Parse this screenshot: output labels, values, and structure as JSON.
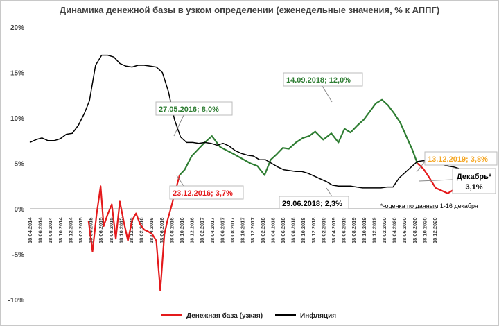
{
  "chart_data": {
    "type": "line",
    "title": "Динамика денежной базы в узком определении (еженедельные значения, % к АППГ)",
    "y_ticks": [
      "20%",
      "15%",
      "10%",
      "5%",
      "0%",
      "-5%",
      "-10%"
    ],
    "ylim": [
      -10,
      20
    ],
    "x_ticks": [
      "18.04.2014",
      "18.06.2014",
      "18.08.2014",
      "18.10.2014",
      "18.12.2014",
      "18.02.2015",
      "18.04.2015",
      "18.06.2015",
      "18.08.2015",
      "18.10.2015",
      "18.12.2015",
      "18.02.2016",
      "18.04.2016",
      "18.06.2016",
      "18.08.2016",
      "18.10.2016",
      "18.12.2016",
      "18.02.2017",
      "18.04.2017",
      "18.06.2017",
      "18.08.2017",
      "18.10.2017",
      "18.12.2017",
      "18.02.2018",
      "18.04.2018",
      "18.06.2018",
      "18.08.2018",
      "18.10.2018",
      "18.12.2018",
      "18.02.2019",
      "18.04.2019",
      "18.06.2019",
      "18.08.2019",
      "18.10.2019",
      "18.12.2019",
      "18.02.2020",
      "18.04.2020",
      "18.06.2020",
      "18.08.2020",
      "18.10.2020",
      "18.12.2020"
    ],
    "series": [
      {
        "name": "Денежная база (узкая)",
        "color": "#e41a1c",
        "points": [
          [
            5.8,
            -1.3
          ],
          [
            6.2,
            -4.7
          ],
          [
            6.6,
            -0.6
          ],
          [
            7.0,
            2.5
          ],
          [
            7.3,
            -1.9
          ],
          [
            7.7,
            -0.6
          ],
          [
            8.1,
            0.5
          ],
          [
            8.5,
            -3.3
          ],
          [
            8.9,
            0.8
          ],
          [
            9.3,
            -1.5
          ],
          [
            9.7,
            -3.5
          ],
          [
            10.1,
            -1.3
          ],
          [
            10.5,
            -0.5
          ],
          [
            10.9,
            -1.7
          ],
          [
            11.3,
            -2.3
          ],
          [
            11.7,
            -2.5
          ],
          [
            12.1,
            -2.8
          ],
          [
            12.5,
            -3.5
          ],
          [
            12.9,
            -9.0
          ],
          [
            13.3,
            -2.8
          ],
          [
            13.6,
            -1.3
          ],
          [
            14.0,
            0.3
          ],
          [
            14.4,
            2.0
          ],
          [
            14.8,
            3.7
          ]
        ]
      },
      {
        "name": "Денежная база (узкая)",
        "color": "#2e7d32",
        "points": [
          [
            14.8,
            3.7
          ],
          [
            15.3,
            4.3
          ],
          [
            16.0,
            5.8
          ],
          [
            16.6,
            6.5
          ],
          [
            17.2,
            7.2
          ],
          [
            18.0,
            8.0
          ],
          [
            18.8,
            6.8
          ],
          [
            19.5,
            6.4
          ],
          [
            20.2,
            6.0
          ],
          [
            21.0,
            5.5
          ],
          [
            21.8,
            5.0
          ],
          [
            22.5,
            4.7
          ],
          [
            23.2,
            3.7
          ],
          [
            23.8,
            5.4
          ],
          [
            24.4,
            6.0
          ],
          [
            25.0,
            6.7
          ],
          [
            25.6,
            6.6
          ],
          [
            26.3,
            7.3
          ],
          [
            27.0,
            7.8
          ],
          [
            27.6,
            8.0
          ],
          [
            28.2,
            8.5
          ],
          [
            29.0,
            7.6
          ],
          [
            29.8,
            8.3
          ],
          [
            30.5,
            7.3
          ],
          [
            31.1,
            8.8
          ],
          [
            31.7,
            8.4
          ],
          [
            32.4,
            9.2
          ],
          [
            33.0,
            9.8
          ],
          [
            33.6,
            10.7
          ],
          [
            34.2,
            11.6
          ],
          [
            34.8,
            12.0
          ],
          [
            35.4,
            11.4
          ],
          [
            36.0,
            10.5
          ],
          [
            36.6,
            9.5
          ],
          [
            37.2,
            8.0
          ],
          [
            37.8,
            6.5
          ],
          [
            38.3,
            5.0
          ]
        ]
      },
      {
        "name": "Денежная база (узкая)",
        "color": "#e41a1c",
        "points": [
          [
            38.3,
            5.0
          ],
          [
            38.9,
            4.4
          ],
          [
            39.5,
            3.4
          ],
          [
            40.1,
            2.3
          ],
          [
            40.7,
            2.0
          ],
          [
            41.3,
            1.7
          ],
          [
            41.9,
            2.1
          ],
          [
            42.5,
            2.4
          ],
          [
            43.1,
            2.3
          ],
          [
            43.7,
            3.3
          ],
          [
            44.1,
            4.0
          ]
        ]
      },
      {
        "name": "Денежная база (узкая)",
        "color": "#f5a623",
        "points": [
          [
            44.1,
            4.0
          ],
          [
            44.4,
            3.6
          ],
          [
            44.8,
            3.8
          ]
        ]
      },
      {
        "name": "Инфляция",
        "color": "#000000",
        "points": [
          [
            0.0,
            7.3
          ],
          [
            0.6,
            7.6
          ],
          [
            1.2,
            7.8
          ],
          [
            1.8,
            7.5
          ],
          [
            2.4,
            7.5
          ],
          [
            3.0,
            7.7
          ],
          [
            3.6,
            8.2
          ],
          [
            4.2,
            8.3
          ],
          [
            4.8,
            9.2
          ],
          [
            5.4,
            10.5
          ],
          [
            5.9,
            11.9
          ],
          [
            6.5,
            15.8
          ],
          [
            7.1,
            16.9
          ],
          [
            7.7,
            16.9
          ],
          [
            8.3,
            16.7
          ],
          [
            8.9,
            16.0
          ],
          [
            9.5,
            15.7
          ],
          [
            10.1,
            15.6
          ],
          [
            10.7,
            15.8
          ],
          [
            11.3,
            15.8
          ],
          [
            11.9,
            15.7
          ],
          [
            12.5,
            15.6
          ],
          [
            13.1,
            15.0
          ],
          [
            13.7,
            12.9
          ],
          [
            14.3,
            9.8
          ],
          [
            14.9,
            7.9
          ],
          [
            15.5,
            7.3
          ],
          [
            16.1,
            7.3
          ],
          [
            16.7,
            7.2
          ],
          [
            17.3,
            7.3
          ],
          [
            17.9,
            7.2
          ],
          [
            18.5,
            7.0
          ],
          [
            19.1,
            7.2
          ],
          [
            19.7,
            6.9
          ],
          [
            20.3,
            6.4
          ],
          [
            20.9,
            6.1
          ],
          [
            21.5,
            5.9
          ],
          [
            22.1,
            5.8
          ],
          [
            22.7,
            5.4
          ],
          [
            23.3,
            5.4
          ],
          [
            23.9,
            5.0
          ],
          [
            24.5,
            4.6
          ],
          [
            25.1,
            4.3
          ],
          [
            25.7,
            4.2
          ],
          [
            26.3,
            4.1
          ],
          [
            26.9,
            4.1
          ],
          [
            27.5,
            3.9
          ],
          [
            28.1,
            3.6
          ],
          [
            28.7,
            3.3
          ],
          [
            29.3,
            3.0
          ],
          [
            29.9,
            2.6
          ],
          [
            30.5,
            2.5
          ],
          [
            31.1,
            2.5
          ],
          [
            31.7,
            2.5
          ],
          [
            32.3,
            2.4
          ],
          [
            32.9,
            2.3
          ],
          [
            33.5,
            2.3
          ],
          [
            34.1,
            2.3
          ],
          [
            34.7,
            2.3
          ],
          [
            35.3,
            2.4
          ],
          [
            35.9,
            2.4
          ],
          [
            36.5,
            3.4
          ],
          [
            37.1,
            4.0
          ],
          [
            37.7,
            4.6
          ],
          [
            38.3,
            5.2
          ],
          [
            38.9,
            5.3
          ],
          [
            39.5,
            5.2
          ],
          [
            40.1,
            5.0
          ],
          [
            40.7,
            4.9
          ],
          [
            41.3,
            4.7
          ],
          [
            41.9,
            4.6
          ],
          [
            42.5,
            4.4
          ],
          [
            43.1,
            4.2
          ],
          [
            43.7,
            3.9
          ],
          [
            44.3,
            3.8
          ],
          [
            44.9,
            3.5
          ]
        ]
      },
      {
        "name": "Инфляция",
        "color": "#000000",
        "points": [
          [
            44.9,
            3.5
          ],
          [
            45.6,
            3.1
          ]
        ]
      }
    ],
    "annotations": [
      {
        "text": "27.05.2016; 8,0%",
        "color": "#2e7d32"
      },
      {
        "text": "14.09.2018; 12,0%",
        "color": "#2e7d32"
      },
      {
        "text": "23.12.2016; 3,7%",
        "color": "#e41a1c"
      },
      {
        "text": "29.06.2018; 2,3%",
        "color": "#000000"
      },
      {
        "text": "13.12.2019; 3,8%",
        "color": "#f5a623"
      },
      {
        "text": "Декабрь*",
        "color": "#000000"
      },
      {
        "text": "3,1%",
        "color": "#000000"
      },
      {
        "text": "*-оценка по данным 1-16 декабря",
        "color": "#000000"
      }
    ],
    "legend": [
      {
        "label": "Денежная база (узкая)",
        "color": "#e41a1c"
      },
      {
        "label": "Инфляция",
        "color": "#000000"
      }
    ]
  }
}
